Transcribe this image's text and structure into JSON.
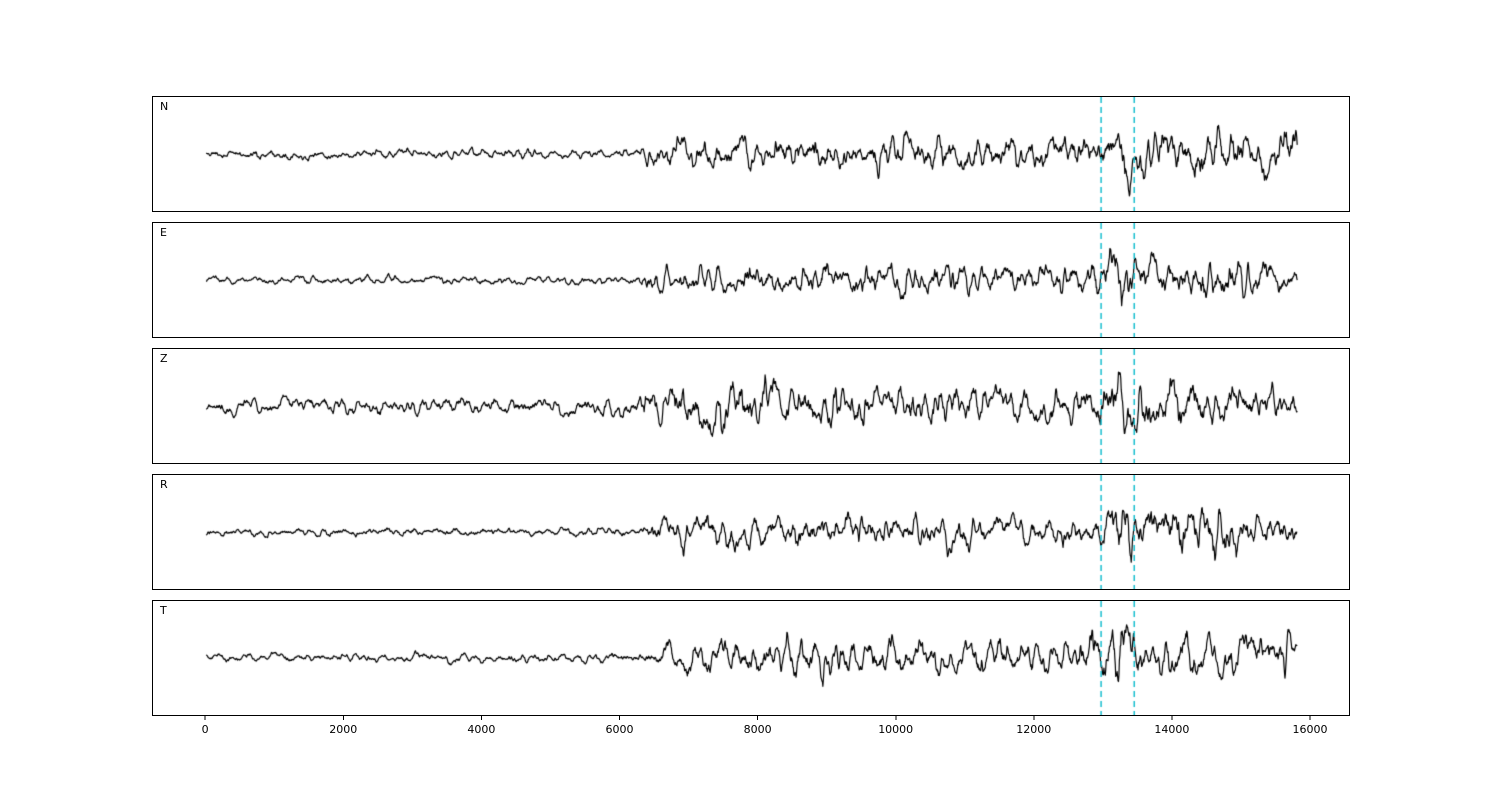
{
  "chart_data": {
    "type": "line",
    "title": "",
    "xlabel": "",
    "ylabel": "",
    "grid": false,
    "legend": "none",
    "background": "#ffffff",
    "trace_color": "#000000",
    "x_range": [
      0,
      15800
    ],
    "axis_x_range": [
      -770,
      16550
    ],
    "xticks": [
      0,
      2000,
      4000,
      6000,
      8000,
      10000,
      12000,
      14000,
      16000
    ],
    "xtick_labels": [
      "0",
      "2000",
      "4000",
      "6000",
      "8000",
      "10000",
      "12000",
      "14000",
      "16000"
    ],
    "event_markers": {
      "positions": [
        12960,
        13440
      ],
      "color": "#17becf",
      "style": "dashed"
    },
    "panels": [
      {
        "label": "N",
        "seed": 11,
        "envelope": [
          [
            0,
            0.13
          ],
          [
            6200,
            0.14
          ],
          [
            6450,
            0.42
          ],
          [
            8000,
            0.45
          ],
          [
            12700,
            0.5
          ],
          [
            13150,
            0.55
          ],
          [
            13300,
            1.0
          ],
          [
            13450,
            0.6
          ],
          [
            14500,
            0.6
          ],
          [
            15500,
            0.5
          ],
          [
            15800,
            0.75
          ]
        ]
      },
      {
        "label": "E",
        "seed": 23,
        "envelope": [
          [
            0,
            0.12
          ],
          [
            6200,
            0.13
          ],
          [
            6500,
            0.4
          ],
          [
            9000,
            0.45
          ],
          [
            12800,
            0.5
          ],
          [
            13250,
            0.95
          ],
          [
            13500,
            0.6
          ],
          [
            14600,
            0.75
          ],
          [
            15200,
            0.5
          ],
          [
            15800,
            0.35
          ]
        ]
      },
      {
        "label": "Z",
        "seed": 37,
        "envelope": [
          [
            0,
            0.22
          ],
          [
            6200,
            0.25
          ],
          [
            6450,
            0.65
          ],
          [
            8200,
            0.7
          ],
          [
            9500,
            0.55
          ],
          [
            12800,
            0.5
          ],
          [
            13300,
            0.9
          ],
          [
            13600,
            0.75
          ],
          [
            14500,
            0.65
          ],
          [
            15800,
            0.45
          ]
        ]
      },
      {
        "label": "R",
        "seed": 51,
        "envelope": [
          [
            0,
            0.12
          ],
          [
            6300,
            0.13
          ],
          [
            6500,
            0.45
          ],
          [
            9000,
            0.5
          ],
          [
            12700,
            0.45
          ],
          [
            13100,
            0.6
          ],
          [
            13300,
            1.0
          ],
          [
            13500,
            0.7
          ],
          [
            14700,
            0.85
          ],
          [
            15300,
            0.5
          ],
          [
            15800,
            0.4
          ]
        ]
      },
      {
        "label": "T",
        "seed": 67,
        "envelope": [
          [
            0,
            0.13
          ],
          [
            6300,
            0.15
          ],
          [
            7000,
            0.5
          ],
          [
            8500,
            0.65
          ],
          [
            10000,
            0.6
          ],
          [
            12500,
            0.55
          ],
          [
            13200,
            0.9
          ],
          [
            13600,
            0.6
          ],
          [
            14500,
            0.7
          ],
          [
            15500,
            0.55
          ],
          [
            15650,
            0.95
          ],
          [
            15800,
            0.45
          ]
        ]
      }
    ]
  }
}
